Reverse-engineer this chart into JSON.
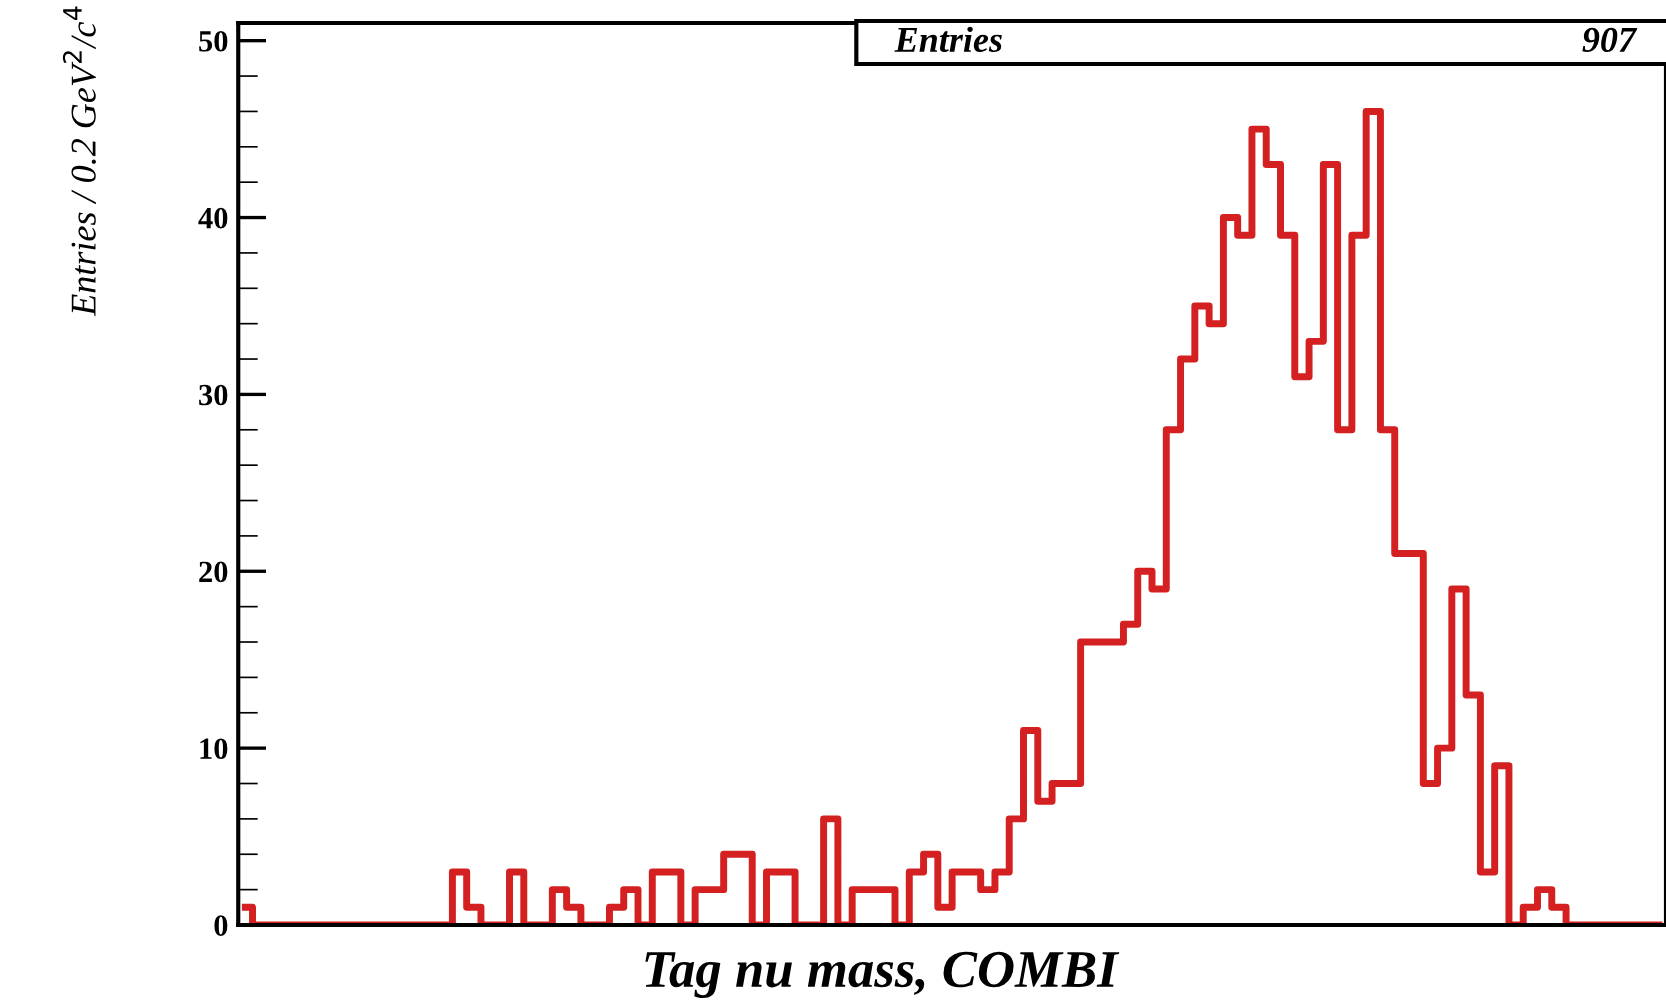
{
  "chart_data": {
    "type": "step",
    "title": "Tag nu mass, COMBI",
    "ylabel": "Entries / 0.2 GeV$^{2}$/c$^{4}$",
    "annotations": [
      "Entries",
      "907"
    ],
    "categories": [
      null,
      null,
      null,
      null,
      null,
      null,
      null,
      null,
      null,
      null,
      null,
      null,
      null,
      null,
      null,
      null,
      null,
      null,
      null,
      null,
      null,
      null,
      null,
      null,
      null,
      null,
      null,
      null,
      null,
      null,
      null,
      null,
      null,
      null,
      null,
      null,
      null,
      null,
      null,
      null,
      null,
      null,
      null,
      null,
      null,
      null,
      null,
      null,
      null,
      null,
      null,
      null,
      null,
      null,
      null,
      null,
      null,
      null,
      null,
      null,
      null,
      null,
      null,
      null,
      null,
      null,
      null,
      null,
      null,
      null,
      null,
      null,
      null,
      null,
      null,
      null,
      null,
      null,
      null,
      null,
      null,
      null,
      null,
      null,
      null,
      null,
      null,
      null,
      null,
      null,
      null,
      null,
      null,
      null,
      null,
      null,
      null,
      null,
      null,
      null
    ],
    "values": [
      1,
      0,
      0,
      0,
      0,
      0,
      0,
      0,
      0,
      0,
      0,
      0,
      0,
      0,
      0,
      3,
      1,
      0,
      0,
      3,
      0,
      0,
      2,
      1,
      0,
      0,
      1,
      2,
      0,
      3,
      3,
      0,
      2,
      2,
      4,
      4,
      0,
      3,
      3,
      0,
      0,
      6,
      0,
      2,
      2,
      2,
      0,
      3,
      4,
      1,
      3,
      3,
      2,
      3,
      6,
      11,
      7,
      8,
      8,
      16,
      16,
      16,
      17,
      20,
      19,
      28,
      32,
      35,
      34,
      40,
      39,
      45,
      43,
      39,
      31,
      33,
      43,
      28,
      39,
      46,
      28,
      21,
      21,
      8,
      10,
      19,
      13,
      3,
      9,
      0,
      1,
      2,
      1,
      0,
      0,
      0,
      0,
      0,
      0,
      0
    ],
    "color": "#d42020",
    "ylim": [
      0,
      51
    ],
    "yticks": [
      0,
      10,
      20,
      30,
      40,
      50
    ],
    "grid": false,
    "legend": false
  }
}
